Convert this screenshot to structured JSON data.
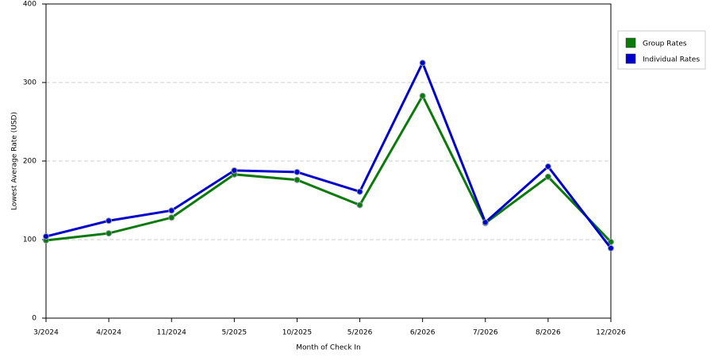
{
  "chart_data": {
    "type": "line",
    "xlabel": "Month of Check In",
    "ylabel": "Lowest Average Rate (USD)",
    "categories": [
      "3/2024",
      "4/2024",
      "11/2024",
      "5/2025",
      "10/2025",
      "5/2026",
      "6/2026",
      "7/2026",
      "8/2026",
      "12/2026"
    ],
    "series": [
      {
        "name": "Group Rates",
        "color": "#0b7a0b",
        "values": [
          99,
          108,
          128,
          183,
          176,
          144,
          283,
          121,
          180,
          97
        ]
      },
      {
        "name": "Individual Rates",
        "color": "#0000cc",
        "values": [
          104,
          124,
          137,
          188,
          186,
          161,
          325,
          122,
          193,
          89
        ]
      }
    ],
    "ylim": [
      0,
      400
    ],
    "yticks": [
      0,
      100,
      200,
      300,
      400
    ],
    "grid": true,
    "legend": "right"
  }
}
